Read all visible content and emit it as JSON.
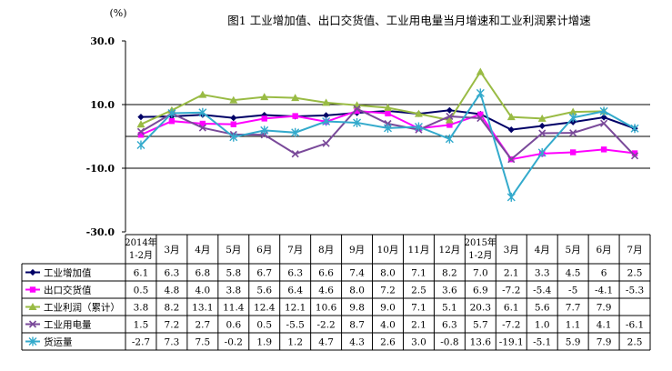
{
  "chart_data": {
    "type": "line",
    "title": "图1 工业增加值、出口交货值、工业用电量当月增速和工业利润累计增速",
    "yunit": "(%)",
    "ylim": [
      -30,
      30
    ],
    "yticks": [
      "30.0",
      "10.0",
      "-10.0",
      "-30.0"
    ],
    "ytick_values": [
      30,
      10,
      -10,
      -30
    ],
    "reference_lines": [
      10,
      0,
      -10
    ],
    "grid": false,
    "legend_position": "table-left",
    "categories": [
      [
        "2014年",
        "1-2月"
      ],
      [
        "3月"
      ],
      [
        "4月"
      ],
      [
        "5月"
      ],
      [
        "6月"
      ],
      [
        "7月"
      ],
      [
        "8月"
      ],
      [
        "9月"
      ],
      [
        "10月"
      ],
      [
        "11月"
      ],
      [
        "12月"
      ],
      [
        "2015年",
        "1-2月"
      ],
      [
        "3月"
      ],
      [
        "4月"
      ],
      [
        "5月"
      ],
      [
        "6月"
      ],
      [
        "7月"
      ]
    ],
    "series": [
      {
        "name": "工业增加值",
        "color": "#000066",
        "marker": "diamond",
        "values": [
          6.1,
          6.3,
          6.8,
          5.8,
          6.7,
          6.3,
          6.6,
          7.4,
          8.0,
          7.1,
          8.2,
          7.0,
          2.1,
          3.3,
          4.5,
          6,
          2.5
        ],
        "labels": [
          "6.1",
          "6.3",
          "6.8",
          "5.8",
          "6.7",
          "6.3",
          "6.6",
          "7.4",
          "8.0",
          "7.1",
          "8.2",
          "7.0",
          "2.1",
          "3.3",
          "4.5",
          "6",
          "2.5"
        ]
      },
      {
        "name": "出口交货值",
        "color": "#ff00ff",
        "marker": "square",
        "values": [
          0.5,
          4.8,
          4.0,
          3.8,
          5.6,
          6.4,
          4.6,
          8.0,
          7.2,
          2.5,
          3.6,
          6.9,
          -7.2,
          -5.4,
          -5,
          -4.1,
          -5.3
        ],
        "labels": [
          "0.5",
          "4.8",
          "4.0",
          "3.8",
          "5.6",
          "6.4",
          "4.6",
          "8.0",
          "7.2",
          "2.5",
          "3.6",
          "6.9",
          "-7.2",
          "-5.4",
          "-5",
          "-4.1",
          "-5.3"
        ]
      },
      {
        "name": "工业利润（累计）",
        "color": "#99bb44",
        "marker": "triangle",
        "values": [
          3.8,
          8.2,
          13.1,
          11.4,
          12.4,
          12.1,
          10.6,
          9.8,
          9.0,
          7.1,
          5.1,
          20.3,
          6.1,
          5.6,
          7.7,
          7.9,
          null
        ],
        "labels": [
          "3.8",
          "8.2",
          "13.1",
          "11.4",
          "12.4",
          "12.1",
          "10.6",
          "9.8",
          "9.0",
          "7.1",
          "5.1",
          "20.3",
          "6.1",
          "5.6",
          "7.7",
          "7.9",
          ""
        ]
      },
      {
        "name": "工业用电量",
        "color": "#7a4a9a",
        "marker": "x",
        "values": [
          1.5,
          7.2,
          2.7,
          0.6,
          0.5,
          -5.5,
          -2.2,
          8.7,
          4.0,
          2.1,
          6.3,
          5.7,
          -7.2,
          1.0,
          1.1,
          4.1,
          -6.1
        ],
        "labels": [
          "1.5",
          "7.2",
          "2.7",
          "0.6",
          "0.5",
          "-5.5",
          "-2.2",
          "8.7",
          "4.0",
          "2.1",
          "6.3",
          "5.7",
          "-7.2",
          "1.0",
          "1.1",
          "4.1",
          "-6.1"
        ]
      },
      {
        "name": "货运量",
        "color": "#33aacc",
        "marker": "star",
        "values": [
          -2.7,
          7.3,
          7.5,
          -0.2,
          1.9,
          1.2,
          4.7,
          4.3,
          2.6,
          3.0,
          -0.8,
          13.6,
          -19.1,
          -5.1,
          5.9,
          7.9,
          2.5
        ],
        "labels": [
          "-2.7",
          "7.3",
          "7.5",
          "-0.2",
          "1.9",
          "1.2",
          "4.7",
          "4.3",
          "2.6",
          "3.0",
          "-0.8",
          "13.6",
          "-19.1",
          "-5.1",
          "5.9",
          "7.9",
          "2.5"
        ]
      }
    ]
  }
}
